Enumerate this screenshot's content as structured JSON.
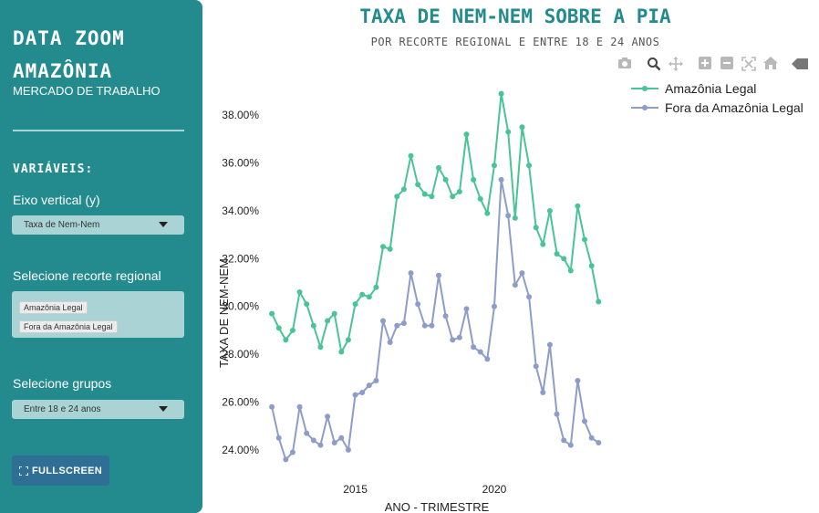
{
  "sidebar": {
    "title_line1": "DATA ZOOM",
    "title_line2": "AMAZÔNIA",
    "subtitle": "MERCADO DE TRABALHO",
    "section_title": "VARIÁVEIS:",
    "y_label": "Eixo vertical (y)",
    "y_value": "Taxa de Nem-Nem",
    "region_label": "Selecione recorte regional",
    "region_chips": [
      "Amazônia Legal",
      "Fora da Amazônia Legal"
    ],
    "group_label": "Selecione grupos",
    "group_value": "Entre 18 e 24 anos",
    "fullscreen_label": "FULLSCREEN"
  },
  "modebar": {
    "icons": [
      "camera-icon",
      "zoom-icon",
      "pan-icon",
      "zoom-in-icon",
      "zoom-out-icon",
      "autoscale-icon",
      "home-icon",
      "plotly-logo-icon"
    ]
  },
  "colors": {
    "sidebar_bg": "#238a8d",
    "title_color": "#238a8d",
    "series_1": "#48c495",
    "series_2": "#8d9cc9",
    "fullscreen_btn": "#2f6f95"
  },
  "chart_data": {
    "type": "line",
    "title": "TAXA DE NEM-NEM SOBRE A PIA",
    "subtitle": "POR RECORTE REGIONAL E ENTRE 18 E 24 ANOS",
    "xlabel": "ANO - TRIMESTRE",
    "ylabel": "TAXA DE NEM-NEM",
    "x_ticks": [
      "2015",
      "2020"
    ],
    "y_ticks": [
      "24.00%",
      "26.00%",
      "28.00%",
      "30.00%",
      "32.00%",
      "34.00%",
      "36.00%",
      "38.00%"
    ],
    "ylim": [
      23.5,
      39.0
    ],
    "xlim": [
      2011.8,
      2024.2
    ],
    "grid": false,
    "legend": "top-right",
    "x": [
      2012.0,
      2012.25,
      2012.5,
      2012.75,
      2013.0,
      2013.25,
      2013.5,
      2013.75,
      2014.0,
      2014.25,
      2014.5,
      2014.75,
      2015.0,
      2015.25,
      2015.5,
      2015.75,
      2016.0,
      2016.25,
      2016.5,
      2016.75,
      2017.0,
      2017.25,
      2017.5,
      2017.75,
      2018.0,
      2018.25,
      2018.5,
      2018.75,
      2019.0,
      2019.25,
      2019.5,
      2019.75,
      2020.0,
      2020.25,
      2020.5,
      2020.75,
      2021.0,
      2021.25,
      2021.5,
      2021.75,
      2022.0,
      2022.25,
      2022.5,
      2022.75,
      2023.0,
      2023.25,
      2023.5,
      2023.75
    ],
    "series": [
      {
        "name": "Amazônia Legal",
        "values": [
          29.7,
          29.1,
          28.6,
          29.0,
          30.6,
          30.1,
          29.2,
          28.3,
          29.4,
          29.7,
          28.1,
          28.6,
          30.1,
          30.5,
          30.4,
          30.8,
          32.5,
          32.4,
          34.6,
          34.9,
          36.3,
          35.1,
          34.7,
          34.6,
          35.8,
          35.3,
          34.6,
          34.8,
          37.2,
          35.3,
          34.5,
          33.9,
          35.9,
          38.9,
          37.3,
          33.7,
          37.5,
          35.9,
          33.3,
          32.6,
          34.0,
          32.2,
          32.0,
          31.5,
          34.2,
          32.8,
          31.7,
          30.2
        ]
      },
      {
        "name": "Fora da Amazônia Legal",
        "values": [
          25.8,
          24.5,
          23.6,
          23.9,
          25.8,
          24.7,
          24.4,
          24.2,
          25.4,
          24.3,
          24.5,
          24.0,
          26.3,
          26.4,
          26.7,
          26.9,
          29.4,
          28.5,
          29.2,
          29.3,
          31.4,
          30.1,
          29.2,
          29.2,
          31.3,
          29.6,
          28.6,
          28.7,
          29.9,
          28.3,
          28.1,
          27.8,
          30.0,
          35.3,
          33.8,
          30.9,
          31.4,
          30.4,
          27.5,
          26.4,
          28.4,
          25.5,
          24.4,
          24.2,
          26.9,
          25.2,
          24.5,
          24.3
        ]
      }
    ]
  }
}
